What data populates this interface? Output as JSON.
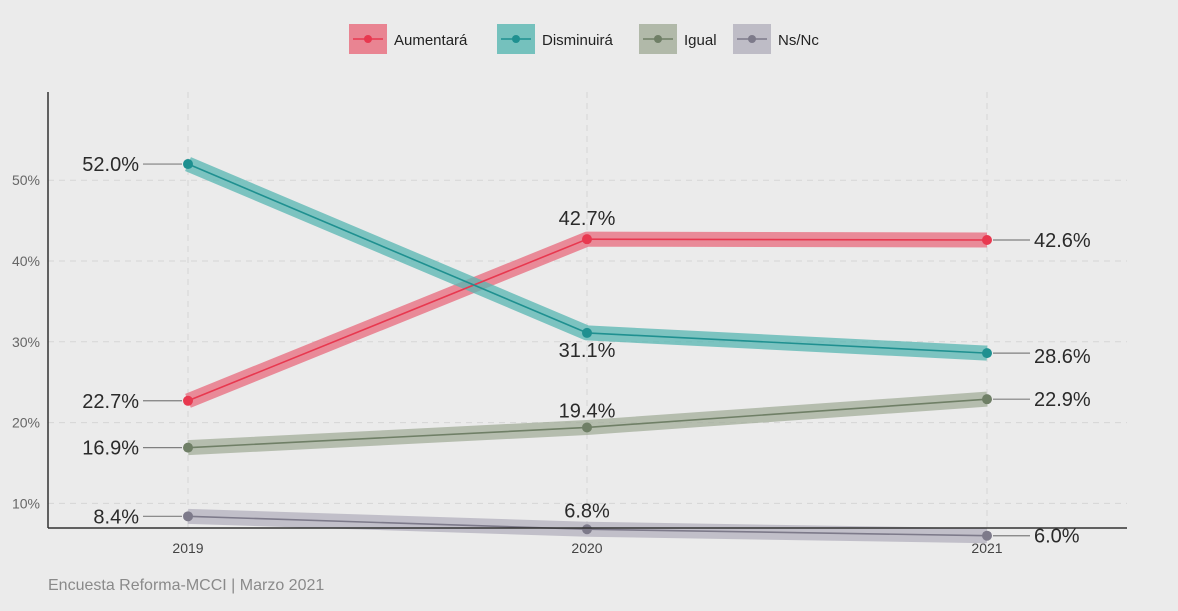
{
  "chart_data": {
    "type": "line",
    "categories": [
      "2019",
      "2020",
      "2021"
    ],
    "ylim": [
      4,
      55
    ],
    "yticks": [
      10,
      20,
      30,
      40,
      50
    ],
    "ytick_labels": [
      "10%",
      "20%",
      "30%",
      "40%",
      "50%"
    ],
    "grid": true,
    "legend_position": "top-center",
    "series": [
      {
        "name": "Aumentará",
        "color": "#e8384f",
        "values": [
          22.7,
          42.7,
          42.6
        ],
        "labels": [
          "22.7%",
          "42.7%",
          "42.6%"
        ]
      },
      {
        "name": "Disminuirá",
        "color": "#1f9090",
        "values": [
          52.0,
          31.1,
          28.6
        ],
        "labels": [
          "52.0%",
          "31.1%",
          "28.6%"
        ]
      },
      {
        "name": "Igual",
        "color": "#6f7f66",
        "values": [
          16.9,
          19.4,
          22.9
        ],
        "labels": [
          "16.9%",
          "19.4%",
          "22.9%"
        ]
      },
      {
        "name": "Ns/Nc",
        "color": "#7d7a8a",
        "values": [
          8.4,
          6.8,
          6.0
        ],
        "labels": [
          "8.4%",
          "6.8%",
          "6.0%"
        ]
      }
    ],
    "caption": "Encuesta Reforma-MCCI | Marzo 2021"
  }
}
